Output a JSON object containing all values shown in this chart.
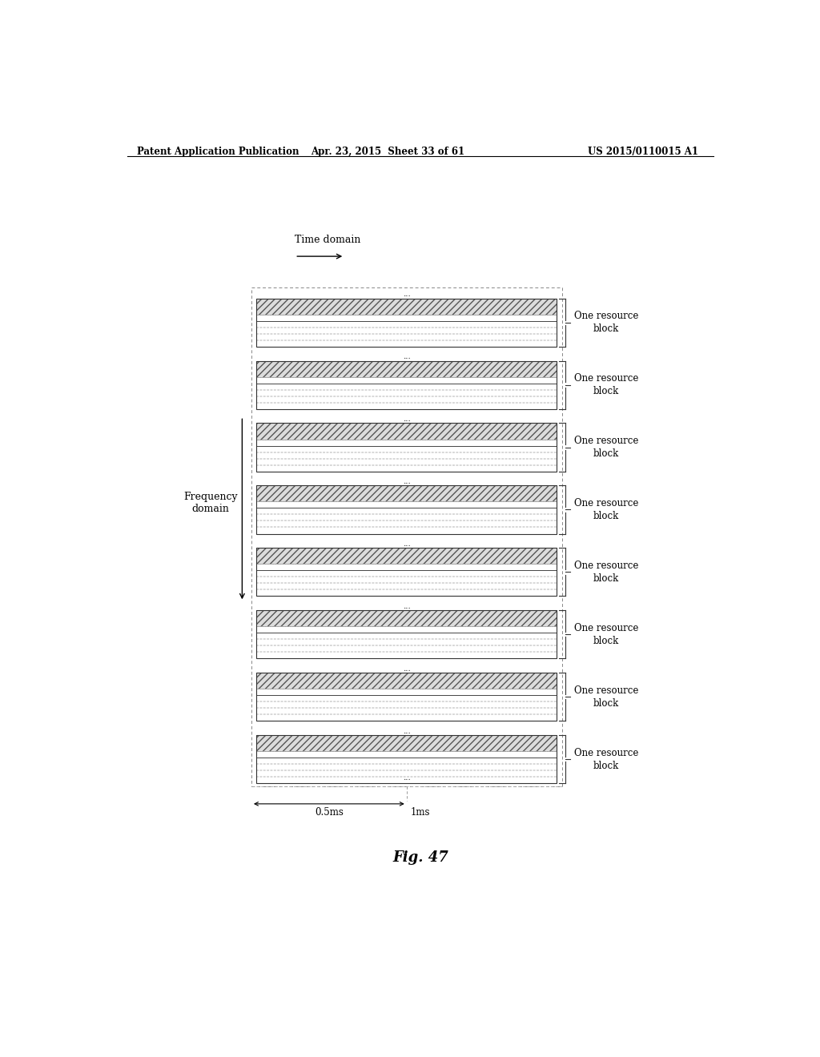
{
  "header_left": "Patent Application Publication",
  "header_mid": "Apr. 23, 2015  Sheet 33 of 61",
  "header_right": "US 2015/0110015 A1",
  "fig_label": "Fig. 47",
  "time_domain_label": "Time domain",
  "freq_domain_label": "Frequency\ndomain",
  "resource_block_label": "One resource\nblock",
  "num_blocks": 8,
  "dim_05ms": "0.5ms",
  "dim_1ms": "1ms",
  "bg_color": "#ffffff",
  "line_color": "#000000",
  "hatch_color": "#555555"
}
